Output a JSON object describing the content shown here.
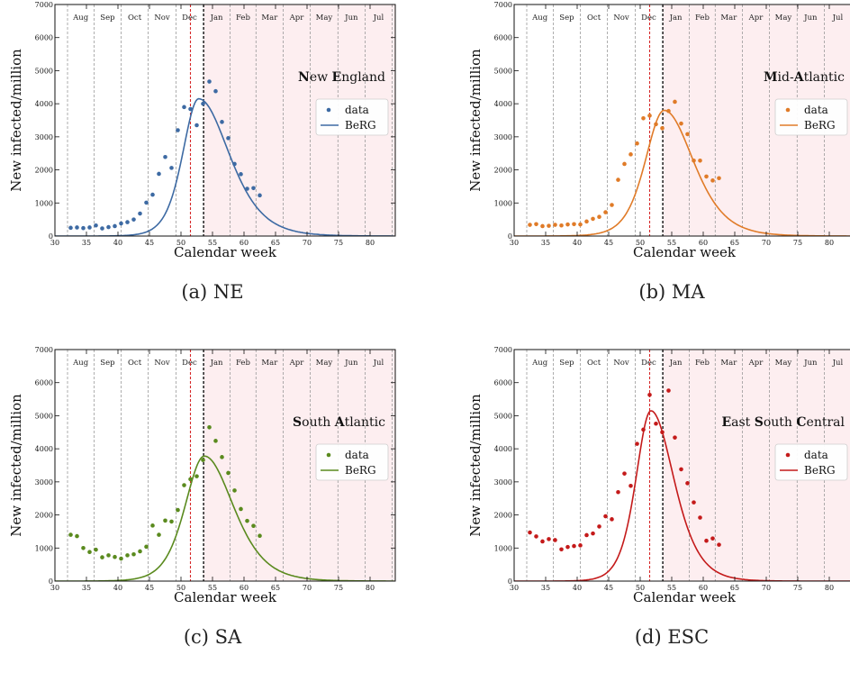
{
  "captions": [
    "(a) NE",
    "(b) MA",
    "(c) SA",
    "(d) ESC"
  ],
  "chart_data": [
    {
      "type": "scatter",
      "title_bold": [
        "N",
        "E"
      ],
      "title_parts": [
        [
          "N",
          true
        ],
        [
          "ew ",
          false
        ],
        [
          "E",
          true
        ],
        [
          "ngland",
          false
        ]
      ],
      "xlabel": "Calendar week",
      "ylabel": "New infected/million",
      "xlim": [
        30,
        84
      ],
      "ylim": [
        0,
        7000
      ],
      "xticks": [
        30,
        35,
        40,
        45,
        50,
        55,
        60,
        65,
        70,
        75,
        80
      ],
      "yticks": [
        0,
        1000,
        2000,
        3000,
        4000,
        5000,
        6000,
        7000
      ],
      "months": [
        "Aug",
        "Sep",
        "Oct",
        "Nov",
        "Dec",
        "Jan",
        "Feb",
        "Mar",
        "Apr",
        "May",
        "Jun",
        "Jul"
      ],
      "month_lines": [
        32,
        36.2,
        40.5,
        44.8,
        49.2,
        53.5,
        57.8,
        61.9,
        66.2,
        70.5,
        74.9,
        79.2,
        83.5
      ],
      "red_line": 51.5,
      "black_line": 53.6,
      "legend": [
        "data",
        "BeRG"
      ],
      "color": "#3d6aa3",
      "data_x": [
        32.5,
        33.5,
        34.5,
        35.5,
        36.5,
        37.5,
        38.5,
        39.5,
        40.5,
        41.5,
        42.5,
        43.5,
        44.5,
        45.5,
        46.5,
        47.5,
        48.5,
        49.5,
        50.5,
        51.5,
        52.5,
        53.5,
        54.5,
        55.5,
        56.5,
        57.5,
        58.5,
        59.5,
        60.5,
        61.5,
        62.5
      ],
      "data_y": [
        250,
        260,
        240,
        260,
        320,
        230,
        270,
        300,
        380,
        420,
        500,
        680,
        1010,
        1250,
        1880,
        2390,
        2060,
        3200,
        3900,
        3840,
        3350,
        4000,
        4670,
        4380,
        3450,
        2960,
        2180,
        1870,
        1430,
        1450,
        1230
      ],
      "model": {
        "peak_x": 52.8,
        "peak_y": 4150,
        "left_width": 3.4,
        "right_width": 6.5
      }
    },
    {
      "type": "scatter",
      "title_parts": [
        [
          "M",
          true
        ],
        [
          "id-",
          false
        ],
        [
          "A",
          true
        ],
        [
          "tlantic",
          false
        ]
      ],
      "xlabel": "Calendar week",
      "ylabel": "New infected/million",
      "xlim": [
        30,
        84
      ],
      "ylim": [
        0,
        7000
      ],
      "xticks": [
        30,
        35,
        40,
        45,
        50,
        55,
        60,
        65,
        70,
        75,
        80
      ],
      "yticks": [
        0,
        1000,
        2000,
        3000,
        4000,
        5000,
        6000,
        7000
      ],
      "months": [
        "Aug",
        "Sep",
        "Oct",
        "Nov",
        "Dec",
        "Jan",
        "Feb",
        "Mar",
        "Apr",
        "May",
        "Jun",
        "Jul"
      ],
      "month_lines": [
        32,
        36.2,
        40.5,
        44.8,
        49.2,
        53.5,
        57.8,
        61.9,
        66.2,
        70.5,
        74.9,
        79.2,
        83.5
      ],
      "red_line": 51.5,
      "black_line": 53.6,
      "legend": [
        "data",
        "BeRG"
      ],
      "color": "#e07b28",
      "data_x": [
        32.5,
        33.5,
        34.5,
        35.5,
        36.5,
        37.5,
        38.5,
        39.5,
        40.5,
        41.5,
        42.5,
        43.5,
        44.5,
        45.5,
        46.5,
        47.5,
        48.5,
        49.5,
        50.5,
        51.5,
        52.5,
        53.5,
        54.5,
        55.5,
        56.5,
        57.5,
        58.5,
        59.5,
        60.5,
        61.5,
        62.5
      ],
      "data_y": [
        340,
        360,
        300,
        310,
        340,
        320,
        350,
        360,
        350,
        440,
        520,
        580,
        720,
        940,
        1700,
        2180,
        2470,
        2800,
        3560,
        3640,
        3380,
        3260,
        3780,
        4060,
        3400,
        3080,
        2280,
        2280,
        1800,
        1680,
        1750
      ],
      "model": {
        "peak_x": 53.8,
        "peak_y": 3800,
        "left_width": 4.0,
        "right_width": 6.2
      }
    },
    {
      "type": "scatter",
      "title_parts": [
        [
          "S",
          true
        ],
        [
          "outh ",
          false
        ],
        [
          "A",
          true
        ],
        [
          "tlantic",
          false
        ]
      ],
      "xlabel": "Calendar week",
      "ylabel": "New infected/million",
      "xlim": [
        30,
        84
      ],
      "ylim": [
        0,
        7000
      ],
      "xticks": [
        30,
        35,
        40,
        45,
        50,
        55,
        60,
        65,
        70,
        75,
        80
      ],
      "yticks": [
        0,
        1000,
        2000,
        3000,
        4000,
        5000,
        6000,
        7000
      ],
      "months": [
        "Aug",
        "Sep",
        "Oct",
        "Nov",
        "Dec",
        "Jan",
        "Feb",
        "Mar",
        "Apr",
        "May",
        "Jun",
        "Jul"
      ],
      "month_lines": [
        32,
        36.2,
        40.5,
        44.8,
        49.2,
        53.5,
        57.8,
        61.9,
        66.2,
        70.5,
        74.9,
        79.2,
        83.5
      ],
      "red_line": 51.5,
      "black_line": 53.6,
      "legend": [
        "data",
        "BeRG"
      ],
      "color": "#5a8a1e",
      "data_x": [
        32.5,
        33.5,
        34.5,
        35.5,
        36.5,
        37.5,
        38.5,
        39.5,
        40.5,
        41.5,
        42.5,
        43.5,
        44.5,
        45.5,
        46.5,
        47.5,
        48.5,
        49.5,
        50.5,
        51.5,
        52.5,
        53.5,
        54.5,
        55.5,
        56.5,
        57.5,
        58.5,
        59.5,
        60.5,
        61.5,
        62.5
      ],
      "data_y": [
        1400,
        1360,
        1000,
        880,
        950,
        720,
        780,
        730,
        680,
        780,
        810,
        900,
        1040,
        1680,
        1400,
        1830,
        1800,
        2150,
        2900,
        3080,
        3170,
        3660,
        4650,
        4240,
        3750,
        3270,
        2740,
        2180,
        1820,
        1670,
        1370
      ],
      "model": {
        "peak_x": 53.7,
        "peak_y": 3780,
        "left_width": 4.1,
        "right_width": 6.2
      }
    },
    {
      "type": "scatter",
      "title_parts": [
        [
          "E",
          true
        ],
        [
          "ast ",
          false
        ],
        [
          "S",
          true
        ],
        [
          "outh ",
          false
        ],
        [
          "C",
          true
        ],
        [
          "entral",
          false
        ]
      ],
      "xlabel": "Calendar week",
      "ylabel": "New infected/million",
      "xlim": [
        30,
        84
      ],
      "ylim": [
        0,
        7000
      ],
      "xticks": [
        30,
        35,
        40,
        45,
        50,
        55,
        60,
        65,
        70,
        75,
        80
      ],
      "yticks": [
        0,
        1000,
        2000,
        3000,
        4000,
        5000,
        6000,
        7000
      ],
      "months": [
        "Aug",
        "Sep",
        "Oct",
        "Nov",
        "Dec",
        "Jan",
        "Feb",
        "Mar",
        "Apr",
        "May",
        "Jun",
        "Jul"
      ],
      "month_lines": [
        32,
        36.2,
        40.5,
        44.8,
        49.2,
        53.5,
        57.8,
        61.9,
        66.2,
        70.5,
        74.9,
        79.2,
        83.5
      ],
      "red_line": 51.5,
      "black_line": 53.6,
      "legend": [
        "data",
        "BeRG"
      ],
      "color": "#c41a1a",
      "data_x": [
        32.5,
        33.5,
        34.5,
        35.5,
        36.5,
        37.5,
        38.5,
        39.5,
        40.5,
        41.5,
        42.5,
        43.5,
        44.5,
        45.5,
        46.5,
        47.5,
        48.5,
        49.5,
        50.5,
        51.5,
        52.5,
        53.5,
        54.5,
        55.5,
        56.5,
        57.5,
        58.5,
        59.5,
        60.5,
        61.5,
        62.5
      ],
      "data_y": [
        1470,
        1350,
        1200,
        1270,
        1240,
        960,
        1030,
        1060,
        1080,
        1390,
        1440,
        1650,
        1960,
        1870,
        2690,
        3250,
        2880,
        4150,
        4580,
        5630,
        4760,
        4500,
        5760,
        4340,
        3380,
        2960,
        2380,
        1920,
        1220,
        1290,
        1100
      ],
      "model": {
        "peak_x": 51.7,
        "peak_y": 5150,
        "left_width": 3.2,
        "right_width": 4.9
      }
    }
  ]
}
